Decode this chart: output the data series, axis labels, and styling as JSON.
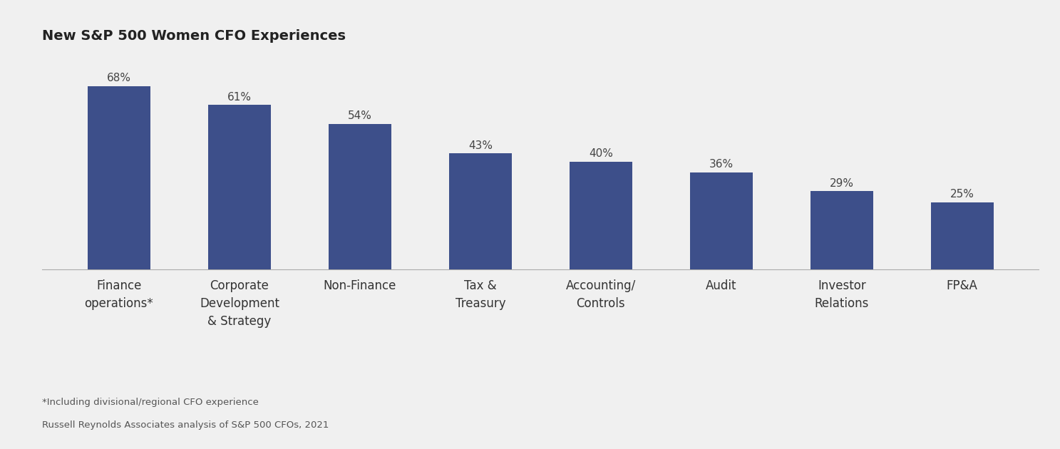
{
  "title": "New S&P 500 Women CFO Experiences",
  "categories": [
    "Finance\noperations*",
    "Corporate\nDevelopment\n& Strategy",
    "Non-Finance",
    "Tax &\nTreasury",
    "Accounting/\nControls",
    "Audit",
    "Investor\nRelations",
    "FP&A"
  ],
  "values": [
    68,
    61,
    54,
    43,
    40,
    36,
    29,
    25
  ],
  "labels": [
    "68%",
    "61%",
    "54%",
    "43%",
    "40%",
    "36%",
    "29%",
    "25%"
  ],
  "bar_color": "#3d4f8a",
  "background_color": "#f0f0f0",
  "title_fontsize": 14,
  "label_fontsize": 11,
  "tick_fontsize": 12,
  "footnote_line1": "*Including divisional/regional CFO experience",
  "footnote_line2": "Russell Reynolds Associates analysis of S&P 500 CFOs, 2021",
  "footnote_fontsize": 9.5,
  "ylim": [
    0,
    80
  ],
  "bar_width": 0.52
}
